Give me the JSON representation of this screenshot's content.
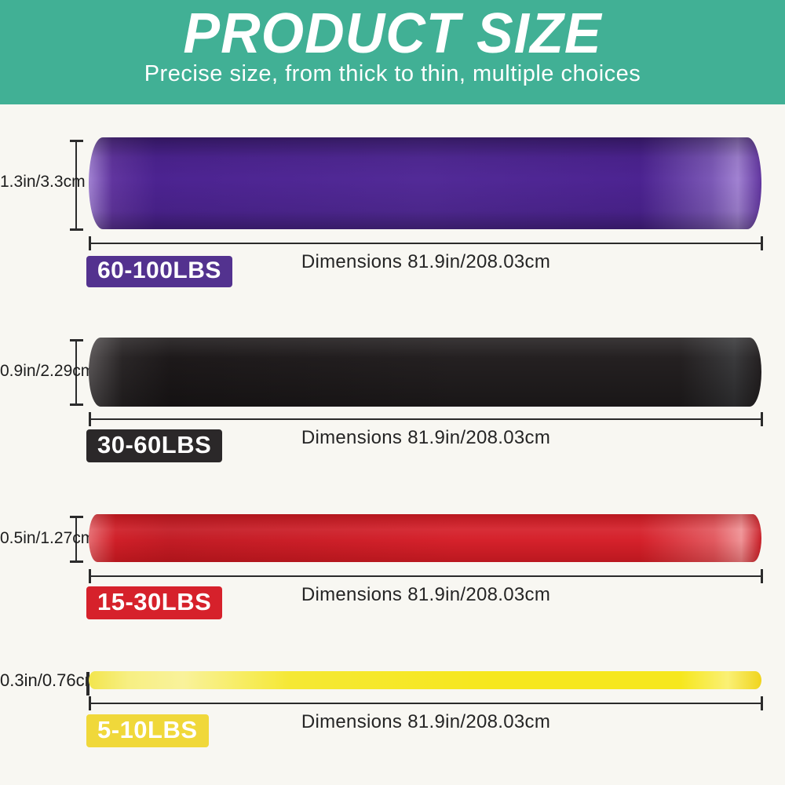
{
  "header": {
    "title": "PRODUCT SIZE",
    "subtitle": "Precise size, from thick to thin, multiple choices",
    "bg_color": "#41b095",
    "text_color": "#ffffff"
  },
  "page": {
    "bg_color": "#f8f7f2",
    "line_color": "#2b2b2b"
  },
  "bands": [
    {
      "color_name": "purple",
      "thickness_label": "1.3in/3.3cm",
      "weight_label": "60-100LBS",
      "dimensions_label": "Dimensions 81.9in/208.03cm",
      "band_color": "#522a97",
      "badge_color": "#53328f"
    },
    {
      "color_name": "black",
      "thickness_label": "0.9in/2.29cm",
      "weight_label": "30-60LBS",
      "dimensions_label": "Dimensions 81.9in/208.03cm",
      "band_color": "#242021",
      "badge_color": "#2b2829"
    },
    {
      "color_name": "red",
      "thickness_label": "0.5in/1.27cm",
      "weight_label": "15-30LBS",
      "dimensions_label": "Dimensions 81.9in/208.03cm",
      "band_color": "#d5212b",
      "badge_color": "#d6212b"
    },
    {
      "color_name": "yellow",
      "thickness_label": "0.3in/0.76cm",
      "weight_label": "5-10LBS",
      "dimensions_label": "Dimensions 81.9in/208.03cm",
      "band_color": "#f6e71e",
      "badge_color": "#f0d83a"
    }
  ]
}
